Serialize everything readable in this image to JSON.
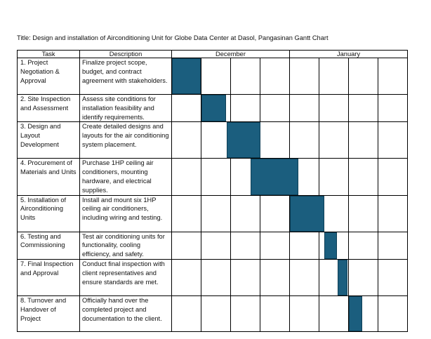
{
  "title": "Title: Design and installation of Airconditioning Unit for Globe Data Center at Dasol, Pangasinan Gantt Chart",
  "headers": {
    "task": "Task",
    "description": "Description",
    "month1": "December",
    "month2": "January"
  },
  "bar_color": "#1b5e7e",
  "rows": [
    {
      "task": "1. Project Negotiation & Approval",
      "description": "Finalize project scope, budget, and contract agreement with stakeholders."
    },
    {
      "task": "2. Site Inspection and Assessment",
      "description": "Assess site conditions for installation feasibility and identify requirements."
    },
    {
      "task": "3. Design and Layout Development",
      "description": "Create detailed designs and layouts for the air conditioning system placement."
    },
    {
      "task": "4. Procurement of Materials and Units",
      "description": "Purchase 1HP ceiling air conditioners, mounting hardware, and electrical supplies."
    },
    {
      "task": "5. Installation of Airconditioning Units",
      "description": "Install and mount six 1HP ceiling air conditioners, including wiring and testing."
    },
    {
      "task": "6. Testing and Commissioning",
      "description": "Test air conditioning units for functionality, cooling efficiency, and safety."
    },
    {
      "task": "7. Final Inspection and Approval",
      "description": "Conduct final inspection with client representatives and ensure standards are met."
    },
    {
      "task": "8. Turnover and Handover of Project",
      "description": "Officially hand over the completed project and documentation to the client."
    }
  ]
}
